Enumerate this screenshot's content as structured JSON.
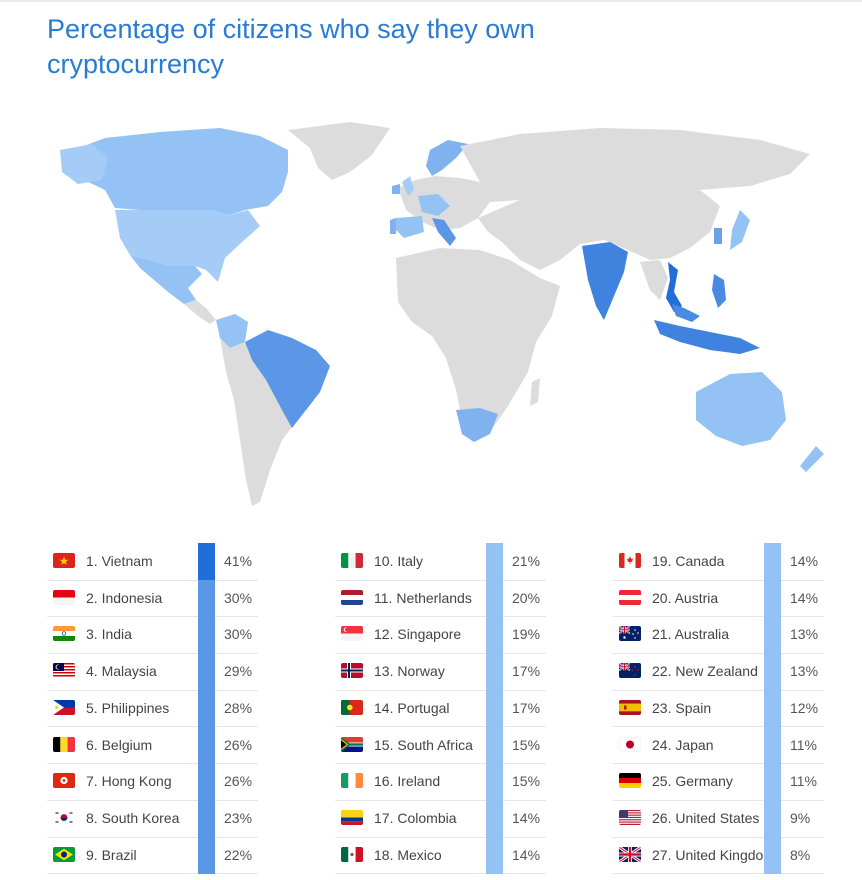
{
  "title": "Percentage of citizens who say they own cryptocurrency",
  "chart_data": {
    "type": "table",
    "title": "Percentage of citizens who say they own cryptocurrency",
    "rows": [
      {
        "rank": "1.",
        "country": "Vietnam",
        "value": 41,
        "label": "41%",
        "flag": "vietnam-flag-icon"
      },
      {
        "rank": "2.",
        "country": "Indonesia",
        "value": 30,
        "label": "30%",
        "flag": "indonesia-flag-icon"
      },
      {
        "rank": "3.",
        "country": "India",
        "value": 30,
        "label": "30%",
        "flag": "india-flag-icon"
      },
      {
        "rank": "4.",
        "country": "Malaysia",
        "value": 29,
        "label": "29%",
        "flag": "malaysia-flag-icon"
      },
      {
        "rank": "5.",
        "country": "Philippines",
        "value": 28,
        "label": "28%",
        "flag": "philippines-flag-icon"
      },
      {
        "rank": "6.",
        "country": "Belgium",
        "value": 26,
        "label": "26%",
        "flag": "belgium-flag-icon"
      },
      {
        "rank": "7.",
        "country": "Hong Kong",
        "value": 26,
        "label": "26%",
        "flag": "hong-kong-flag-icon"
      },
      {
        "rank": "8.",
        "country": "South Korea",
        "value": 23,
        "label": "23%",
        "flag": "south-korea-flag-icon"
      },
      {
        "rank": "9.",
        "country": "Brazil",
        "value": 22,
        "label": "22%",
        "flag": "brazil-flag-icon"
      },
      {
        "rank": "10.",
        "country": "Italy",
        "value": 21,
        "label": "21%",
        "flag": "italy-flag-icon"
      },
      {
        "rank": "11.",
        "country": "Netherlands",
        "value": 20,
        "label": "20%",
        "flag": "netherlands-flag-icon"
      },
      {
        "rank": "12.",
        "country": "Singapore",
        "value": 19,
        "label": "19%",
        "flag": "singapore-flag-icon"
      },
      {
        "rank": "13.",
        "country": "Norway",
        "value": 17,
        "label": "17%",
        "flag": "norway-flag-icon"
      },
      {
        "rank": "14.",
        "country": "Portugal",
        "value": 17,
        "label": "17%",
        "flag": "portugal-flag-icon"
      },
      {
        "rank": "15.",
        "country": "South Africa",
        "value": 15,
        "label": "15%",
        "flag": "south-africa-flag-icon"
      },
      {
        "rank": "16.",
        "country": "Ireland",
        "value": 15,
        "label": "15%",
        "flag": "ireland-flag-icon"
      },
      {
        "rank": "17.",
        "country": "Colombia",
        "value": 14,
        "label": "14%",
        "flag": "colombia-flag-icon"
      },
      {
        "rank": "18.",
        "country": "Mexico",
        "value": 14,
        "label": "14%",
        "flag": "mexico-flag-icon"
      },
      {
        "rank": "19.",
        "country": "Canada",
        "value": 14,
        "label": "14%",
        "flag": "canada-flag-icon"
      },
      {
        "rank": "20.",
        "country": "Austria",
        "value": 14,
        "label": "14%",
        "flag": "austria-flag-icon"
      },
      {
        "rank": "21.",
        "country": "Australia",
        "value": 13,
        "label": "13%",
        "flag": "australia-flag-icon"
      },
      {
        "rank": "22.",
        "country": "New Zealand",
        "value": 13,
        "label": "13%",
        "flag": "new-zealand-flag-icon"
      },
      {
        "rank": "23.",
        "country": "Spain",
        "value": 12,
        "label": "12%",
        "flag": "spain-flag-icon"
      },
      {
        "rank": "24.",
        "country": "Japan",
        "value": 11,
        "label": "11%",
        "flag": "japan-flag-icon"
      },
      {
        "rank": "25.",
        "country": "Germany",
        "value": 11,
        "label": "11%",
        "flag": "germany-flag-icon"
      },
      {
        "rank": "26.",
        "country": "United States",
        "value": 9,
        "label": "9%",
        "flag": "united-states-flag-icon"
      },
      {
        "rank": "27.",
        "country": "United Kingdom",
        "value": 8,
        "label": "8%",
        "flag": "united-kingdom-flag-icon"
      }
    ],
    "colors": {
      "scale_high": "#1f6fd6",
      "scale_mid": "#5b97e6",
      "scale_low": "#95c2f4",
      "no_data": "#dcdcdc",
      "title": "#2a7bd3"
    }
  }
}
